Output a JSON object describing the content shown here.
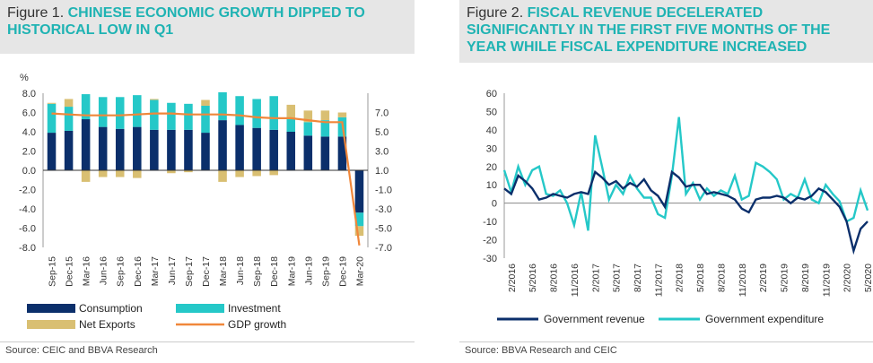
{
  "left": {
    "figure_label": "Figure 1.",
    "title": "CHINESE ECONOMIC GROWTH DIPPED TO HISTORICAL LOW IN Q1",
    "source": "Source: CEIC and BBVA Research"
  },
  "right": {
    "figure_label": "Figure 2.",
    "title": "FISCAL REVENUE DECELERATED SIGNIFICANTLY IN THE FIRST FIVE MONTHS OF THE YEAR WHILE FISCAL EXPENDITURE INCREASED",
    "source": "Source: BBVA Research and CEIC"
  },
  "colors": {
    "consumption": "#0b2f6b",
    "investment": "#25c8c8",
    "net_exports": "#d9bf72",
    "gdp": "#f0873a",
    "revenue": "#0b2f6b",
    "expenditure": "#25c8c8",
    "accent": "#1fb3b3"
  },
  "chart_data": [
    {
      "type": "bar",
      "stacked": true,
      "ylabel": "%",
      "ylim": [
        -8,
        8
      ],
      "y2lim": [
        -7,
        9
      ],
      "yticks": [
        "8.0",
        "6.0",
        "4.0",
        "2.0",
        "0.0",
        "-2.0",
        "-4.0",
        "-6.0",
        "-8.0"
      ],
      "y2ticks": [
        "7.0",
        "5.0",
        "3.0",
        "1.0",
        "-1.0",
        "-3.0",
        "-5.0",
        "-7.0"
      ],
      "categories": [
        "Sep-15",
        "Dec-15",
        "Mar-16",
        "Jun-16",
        "Sep-16",
        "Dec-16",
        "Mar-17",
        "Jun-17",
        "Sep-17",
        "Dec-17",
        "Mar-18",
        "Jun-18",
        "Sep-18",
        "Dec-18",
        "Mar-19",
        "Jun-19",
        "Sep-19",
        "Dec-19",
        "Mar-20"
      ],
      "shown_ticks": [
        "Sep-15",
        "Dec-15",
        "Mar-16",
        "Jun-16",
        "Sep-16",
        "Dec-16",
        "Mar-17",
        "Jun-17",
        "Sep-17",
        "Dec-17",
        "Mar-18",
        "Jun-18",
        "Sep-18",
        "Dec-18",
        "Mar-19",
        "Jun-19",
        "Sep-19",
        "Dec-19",
        "Mar-20"
      ],
      "series": [
        {
          "name": "Consumption",
          "values": [
            3.9,
            4.1,
            5.3,
            4.5,
            4.3,
            4.5,
            4.2,
            4.2,
            4.2,
            3.9,
            5.2,
            4.7,
            4.4,
            4.2,
            4.0,
            3.6,
            3.5,
            3.5,
            -4.4
          ]
        },
        {
          "name": "Investment",
          "values": [
            3.0,
            2.5,
            2.6,
            3.1,
            3.3,
            3.3,
            3.1,
            2.8,
            2.7,
            2.8,
            2.9,
            3.0,
            3.0,
            3.5,
            1.3,
            1.4,
            1.7,
            2.0,
            -1.4
          ]
        },
        {
          "name": "Net Exports",
          "values": [
            0.1,
            0.8,
            -1.2,
            -0.7,
            -0.7,
            -0.8,
            0.1,
            -0.3,
            -0.2,
            0.6,
            -1.2,
            -0.7,
            -0.6,
            -0.5,
            1.5,
            1.2,
            1.0,
            0.5,
            -1.0
          ]
        },
        {
          "name": "GDP growth",
          "axis": "right",
          "values": [
            6.9,
            6.8,
            6.7,
            6.7,
            6.7,
            6.8,
            6.9,
            6.9,
            6.8,
            6.8,
            6.8,
            6.7,
            6.5,
            6.4,
            6.4,
            6.2,
            6.0,
            6.0,
            -6.8
          ]
        }
      ],
      "legend": "bottom"
    },
    {
      "type": "line",
      "ylim": [
        -30,
        60
      ],
      "yticks": [
        "60",
        "50",
        "40",
        "30",
        "20",
        "10",
        "0",
        "-10",
        "-20",
        "-30"
      ],
      "x_ticks": [
        "2/2016",
        "5/2016",
        "8/2016",
        "11/2016",
        "2/2017",
        "5/2017",
        "8/2017",
        "11/2017",
        "2/2018",
        "5/2018",
        "8/2018",
        "11/2018",
        "2/2019",
        "5/2019",
        "8/2019",
        "11/2019",
        "2/2020",
        "5/2020"
      ],
      "x": [
        "1/2016",
        "2/2016",
        "3/2016",
        "4/2016",
        "5/2016",
        "6/2016",
        "7/2016",
        "8/2016",
        "9/2016",
        "10/2016",
        "11/2016",
        "12/2016",
        "1/2017",
        "2/2017",
        "3/2017",
        "4/2017",
        "5/2017",
        "6/2017",
        "7/2017",
        "8/2017",
        "9/2017",
        "10/2017",
        "11/2017",
        "12/2017",
        "1/2018",
        "2/2018",
        "3/2018",
        "4/2018",
        "5/2018",
        "6/2018",
        "7/2018",
        "8/2018",
        "9/2018",
        "10/2018",
        "11/2018",
        "12/2018",
        "1/2019",
        "2/2019",
        "3/2019",
        "4/2019",
        "5/2019",
        "6/2019",
        "7/2019",
        "8/2019",
        "9/2019",
        "10/2019",
        "11/2019",
        "12/2019",
        "1/2020",
        "2/2020",
        "3/2020",
        "4/2020",
        "5/2020"
      ],
      "series": [
        {
          "name": "Government revenue",
          "values": [
            8,
            5,
            15,
            12,
            8,
            2,
            3,
            5,
            4,
            3,
            5,
            6,
            5,
            17,
            14,
            10,
            12,
            8,
            11,
            9,
            13,
            7,
            4,
            -2,
            17,
            14,
            9,
            10,
            10,
            5,
            6,
            5,
            4,
            2,
            -3,
            -5,
            2,
            3,
            3,
            4,
            3,
            0,
            3,
            2,
            4,
            8,
            6,
            2,
            -2,
            -10,
            -26,
            -14,
            -10
          ]
        },
        {
          "name": "Government expenditure",
          "values": [
            18,
            6,
            20,
            10,
            18,
            20,
            5,
            4,
            7,
            0,
            -12,
            6,
            -15,
            37,
            20,
            2,
            10,
            5,
            15,
            8,
            3,
            3,
            -6,
            -8,
            15,
            47,
            5,
            11,
            2,
            8,
            4,
            7,
            5,
            15,
            2,
            4,
            22,
            20,
            17,
            13,
            2,
            5,
            3,
            13,
            2,
            0,
            10,
            5,
            1,
            -10,
            -8,
            7,
            -4
          ]
        }
      ],
      "legend": "bottom"
    }
  ]
}
